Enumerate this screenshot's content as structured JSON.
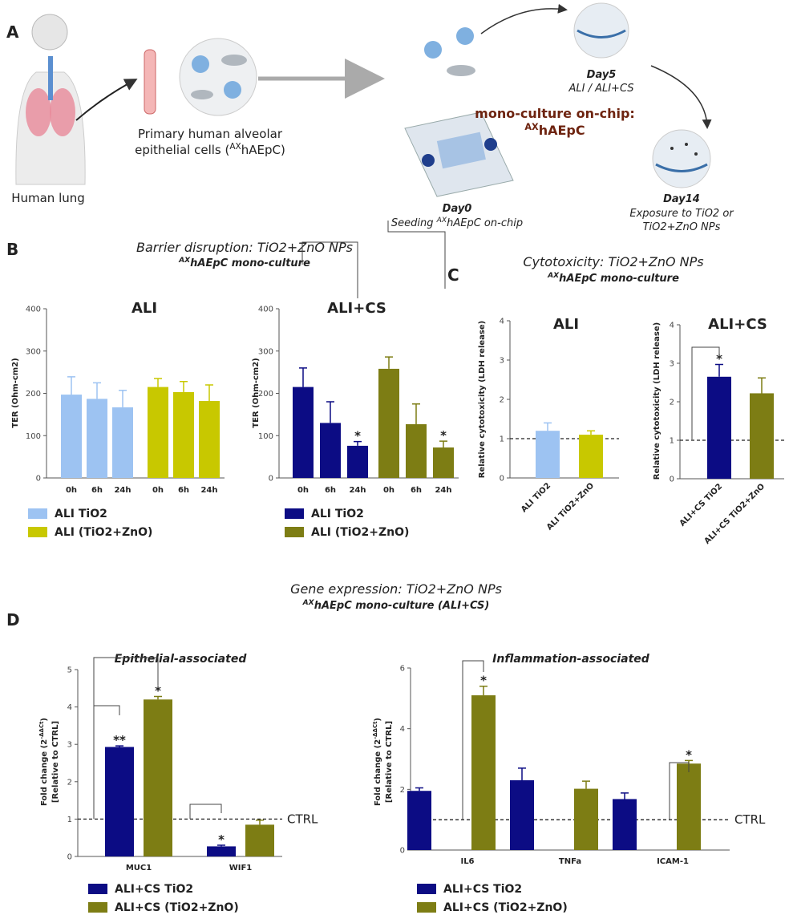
{
  "panel_a": {
    "label": "A",
    "lung": "Human lung",
    "cells_line1": "Primary human alveolar",
    "cells_line2": "epithelial cells (",
    "cells_sup": "AX",
    "cells_end": "hAEpC)",
    "day0": "Day0",
    "day0_note": "Seeding ",
    "day0_sup": "AX",
    "day0_end": "hAEpC on-chip",
    "day5": "Day5",
    "day5_note": "ALI / ALI+CS",
    "culture": "mono-culture on-chip:",
    "culture_sup": "AX",
    "culture_end": "hAEpC",
    "day14": "Day14",
    "day14_note1": "Exposure to TiO2 or",
    "day14_note2": "TiO2+ZnO NPs"
  },
  "panel_b": {
    "label": "B",
    "title": "Barrier disruption: TiO2+ZnO NPs",
    "sup": "AX",
    "subtitle": "hAEpC mono-culture"
  },
  "panel_c": {
    "label": "C",
    "title": "Cytotoxicity: TiO2+ZnO NPs",
    "sup": "AX",
    "subtitle": "hAEpC mono-culture"
  },
  "panel_d": {
    "label": "D",
    "title": "Gene expression: TiO2+ZnO NPs",
    "sup": "AX",
    "subtitle": "hAEpC mono-culture (ALI+CS)"
  },
  "chart_data": [
    {
      "type": "bar",
      "title": "ALI",
      "ylabel": "TER (Ohm-cm2)",
      "categories": [
        "0h",
        "6h",
        "24h"
      ],
      "series": [
        {
          "name": "ALI TiO2",
          "color": "#9dc3f2",
          "values": [
            197,
            187,
            167
          ],
          "errors": [
            42,
            38,
            40
          ]
        },
        {
          "name": "ALI (TiO2+ZnO)",
          "color": "#c8c800",
          "values": [
            215,
            203,
            182
          ],
          "errors": [
            20,
            25,
            38
          ]
        }
      ],
      "ylim": [
        0,
        400
      ],
      "yticks": [
        0,
        100,
        200,
        300,
        400
      ]
    },
    {
      "type": "bar",
      "title": "ALI+CS",
      "ylabel": "TER (Ohm-cm2)",
      "categories": [
        "0h",
        "6h",
        "24h"
      ],
      "series": [
        {
          "name": "ALI TiO2",
          "color": "#0c0c84",
          "values": [
            215,
            130,
            76
          ],
          "errors": [
            45,
            50,
            10
          ],
          "significance": [
            null,
            null,
            "*"
          ]
        },
        {
          "name": "ALI (TiO2+ZnO)",
          "color": "#7d7d14",
          "values": [
            258,
            127,
            72
          ],
          "errors": [
            28,
            48,
            15
          ],
          "significance": [
            null,
            null,
            "*"
          ]
        }
      ],
      "ylim": [
        0,
        400
      ],
      "yticks": [
        0,
        100,
        200,
        300,
        400
      ]
    },
    {
      "type": "bar",
      "title": "ALI",
      "ylabel": "Relative cytotoxicity (LDH release)",
      "categories": [
        "ALI TiO2",
        "ALI TiO2+ZnO"
      ],
      "values": [
        1.2,
        1.1
      ],
      "errors": [
        0.2,
        0.1
      ],
      "colors": [
        "#9dc3f2",
        "#c8c800"
      ],
      "ylim": [
        0,
        4
      ],
      "yticks": [
        0,
        1,
        2,
        3,
        4
      ],
      "reference_line": 1
    },
    {
      "type": "bar",
      "title": "ALI+CS",
      "ylabel": "Relative cytotoxicity (LDH release)",
      "categories": [
        "ALI+CS TiO2",
        "ALI+CS TiO2+ZnO"
      ],
      "values": [
        2.65,
        2.22
      ],
      "errors": [
        0.32,
        0.4
      ],
      "colors": [
        "#0c0c84",
        "#7d7d14"
      ],
      "significance": [
        "*",
        null
      ],
      "ylim": [
        0,
        4
      ],
      "yticks": [
        0,
        1,
        2,
        3,
        4
      ],
      "reference_line": 1
    },
    {
      "type": "bar",
      "title": "Epithelial-associated",
      "ylabel": "Fold change (2",
      "ylabel_sup": "-ΔΔCt",
      "ylabel_end": ")",
      "ylabel2": "[Relative to CTRL]",
      "categories": [
        "MUC1",
        "WIF1"
      ],
      "series": [
        {
          "name": "ALI+CS TiO2",
          "color": "#0c0c84",
          "values": [
            2.93,
            0.27
          ],
          "errors": [
            0.03,
            0.03
          ],
          "significance": [
            "**",
            "*"
          ]
        },
        {
          "name": "ALI+CS (TiO2+ZnO)",
          "color": "#7d7d14",
          "values": [
            4.2,
            0.85
          ],
          "errors": [
            0.08,
            0.12
          ],
          "significance": [
            "*",
            null
          ]
        }
      ],
      "ylim": [
        0,
        5
      ],
      "yticks": [
        0,
        1,
        2,
        3,
        4,
        5
      ],
      "reference_line": 1,
      "reference_label": "CTRL"
    },
    {
      "type": "bar",
      "title": "Inflammation-associated",
      "ylabel": "Fold change (2",
      "ylabel_sup": "-ΔΔCt",
      "ylabel_end": ")",
      "ylabel2": "[Relative to CTRL]",
      "categories": [
        "IL6",
        "TNFa",
        "ICAM-1"
      ],
      "series": [
        {
          "name": "ALI+CS TiO2",
          "color": "#0c0c84",
          "values": [
            1.95,
            2.3,
            1.68
          ],
          "errors": [
            0.1,
            0.4,
            0.2
          ]
        },
        {
          "name": "ALI+CS (TiO2+ZnO)",
          "color": "#7d7d14",
          "values": [
            5.1,
            2.02,
            2.85
          ],
          "errors": [
            0.3,
            0.25,
            0.1
          ],
          "significance": [
            "*",
            null,
            "*"
          ]
        }
      ],
      "ylim": [
        0,
        6
      ],
      "yticks": [
        0,
        2,
        4,
        6
      ],
      "reference_line": 1,
      "reference_label": "CTRL"
    }
  ]
}
